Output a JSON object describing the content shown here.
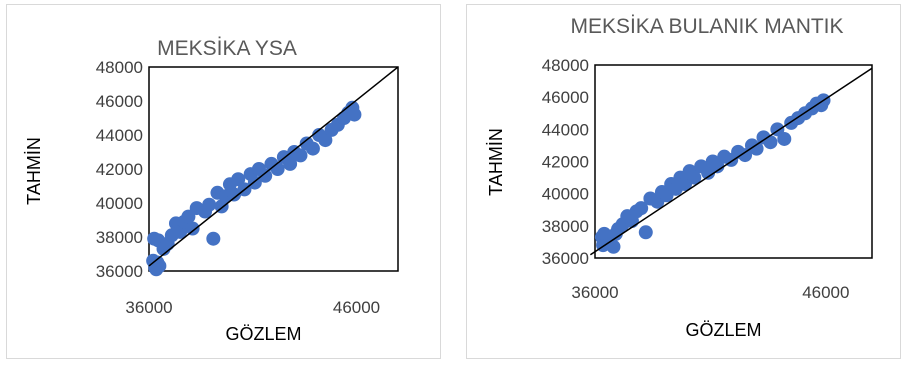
{
  "chart_data": [
    {
      "type": "scatter",
      "title": "MEKSİKA YSA",
      "xlabel": "GÖZLEM",
      "ylabel": "TAHMİN",
      "xlim": [
        36000,
        48000
      ],
      "ylim": [
        36000,
        48000
      ],
      "xticks": [
        "36000",
        "46000"
      ],
      "yticks": [
        "36000",
        "38000",
        "40000",
        "42000",
        "44000",
        "46000",
        "48000"
      ],
      "marker_color": "#4472c4",
      "fit_line": [
        [
          36000,
          36300
        ],
        [
          48000,
          48000
        ]
      ],
      "points": [
        [
          36300,
          36200
        ],
        [
          36350,
          36100
        ],
        [
          36400,
          36500
        ],
        [
          36450,
          37800
        ],
        [
          36500,
          36300
        ],
        [
          36250,
          37900
        ],
        [
          36200,
          36600
        ],
        [
          36700,
          37300
        ],
        [
          36900,
          37600
        ],
        [
          37100,
          38100
        ],
        [
          37300,
          38800
        ],
        [
          37500,
          38300
        ],
        [
          37700,
          38900
        ],
        [
          37900,
          39200
        ],
        [
          38100,
          38500
        ],
        [
          38300,
          39700
        ],
        [
          38700,
          39500
        ],
        [
          38900,
          39900
        ],
        [
          39100,
          37900
        ],
        [
          39300,
          40600
        ],
        [
          39500,
          39800
        ],
        [
          39700,
          40400
        ],
        [
          39900,
          41100
        ],
        [
          40100,
          40500
        ],
        [
          40300,
          41400
        ],
        [
          40600,
          40800
        ],
        [
          40900,
          41700
        ],
        [
          41100,
          41200
        ],
        [
          41300,
          42000
        ],
        [
          41600,
          41600
        ],
        [
          41900,
          42300
        ],
        [
          42200,
          42000
        ],
        [
          42500,
          42700
        ],
        [
          42800,
          42300
        ],
        [
          43000,
          43000
        ],
        [
          43300,
          42800
        ],
        [
          43600,
          43500
        ],
        [
          43900,
          43200
        ],
        [
          44200,
          44000
        ],
        [
          44500,
          43700
        ],
        [
          44800,
          44300
        ],
        [
          45100,
          44600
        ],
        [
          45400,
          45000
        ],
        [
          45600,
          45300
        ],
        [
          45800,
          45600
        ],
        [
          45900,
          45200
        ]
      ]
    },
    {
      "type": "scatter",
      "title": "MEKSİKA BULANIK MANTIK",
      "xlabel": "GÖZLEM",
      "ylabel": "TAHMİN",
      "xlim": [
        36000,
        48000
      ],
      "ylim": [
        36000,
        48000
      ],
      "xticks": [
        "36000",
        "46000"
      ],
      "yticks": [
        "36000",
        "38000",
        "40000",
        "42000",
        "44000",
        "46000",
        "48000"
      ],
      "marker_color": "#4472c4",
      "fit_line": [
        [
          35800,
          36200
        ],
        [
          48000,
          47800
        ]
      ],
      "points": [
        [
          36300,
          37300
        ],
        [
          36350,
          36800
        ],
        [
          36400,
          37500
        ],
        [
          36600,
          36900
        ],
        [
          36800,
          36700
        ],
        [
          36900,
          37500
        ],
        [
          37000,
          37800
        ],
        [
          37200,
          38100
        ],
        [
          37400,
          38600
        ],
        [
          37600,
          38300
        ],
        [
          37800,
          38900
        ],
        [
          38000,
          39100
        ],
        [
          38200,
          37600
        ],
        [
          38400,
          39700
        ],
        [
          38700,
          39500
        ],
        [
          38900,
          40100
        ],
        [
          39100,
          39900
        ],
        [
          39300,
          40600
        ],
        [
          39500,
          40300
        ],
        [
          39700,
          41000
        ],
        [
          39900,
          40600
        ],
        [
          40100,
          41400
        ],
        [
          40300,
          41000
        ],
        [
          40600,
          41700
        ],
        [
          40900,
          41300
        ],
        [
          41100,
          42000
        ],
        [
          41300,
          41700
        ],
        [
          41600,
          42300
        ],
        [
          41900,
          42100
        ],
        [
          42200,
          42600
        ],
        [
          42500,
          42400
        ],
        [
          42800,
          43000
        ],
        [
          43000,
          42800
        ],
        [
          43300,
          43500
        ],
        [
          43600,
          43200
        ],
        [
          43900,
          44000
        ],
        [
          44200,
          43400
        ],
        [
          44500,
          44400
        ],
        [
          44800,
          44700
        ],
        [
          45100,
          45000
        ],
        [
          45400,
          45300
        ],
        [
          45600,
          45600
        ],
        [
          45800,
          45500
        ],
        [
          45900,
          45800
        ]
      ]
    }
  ]
}
